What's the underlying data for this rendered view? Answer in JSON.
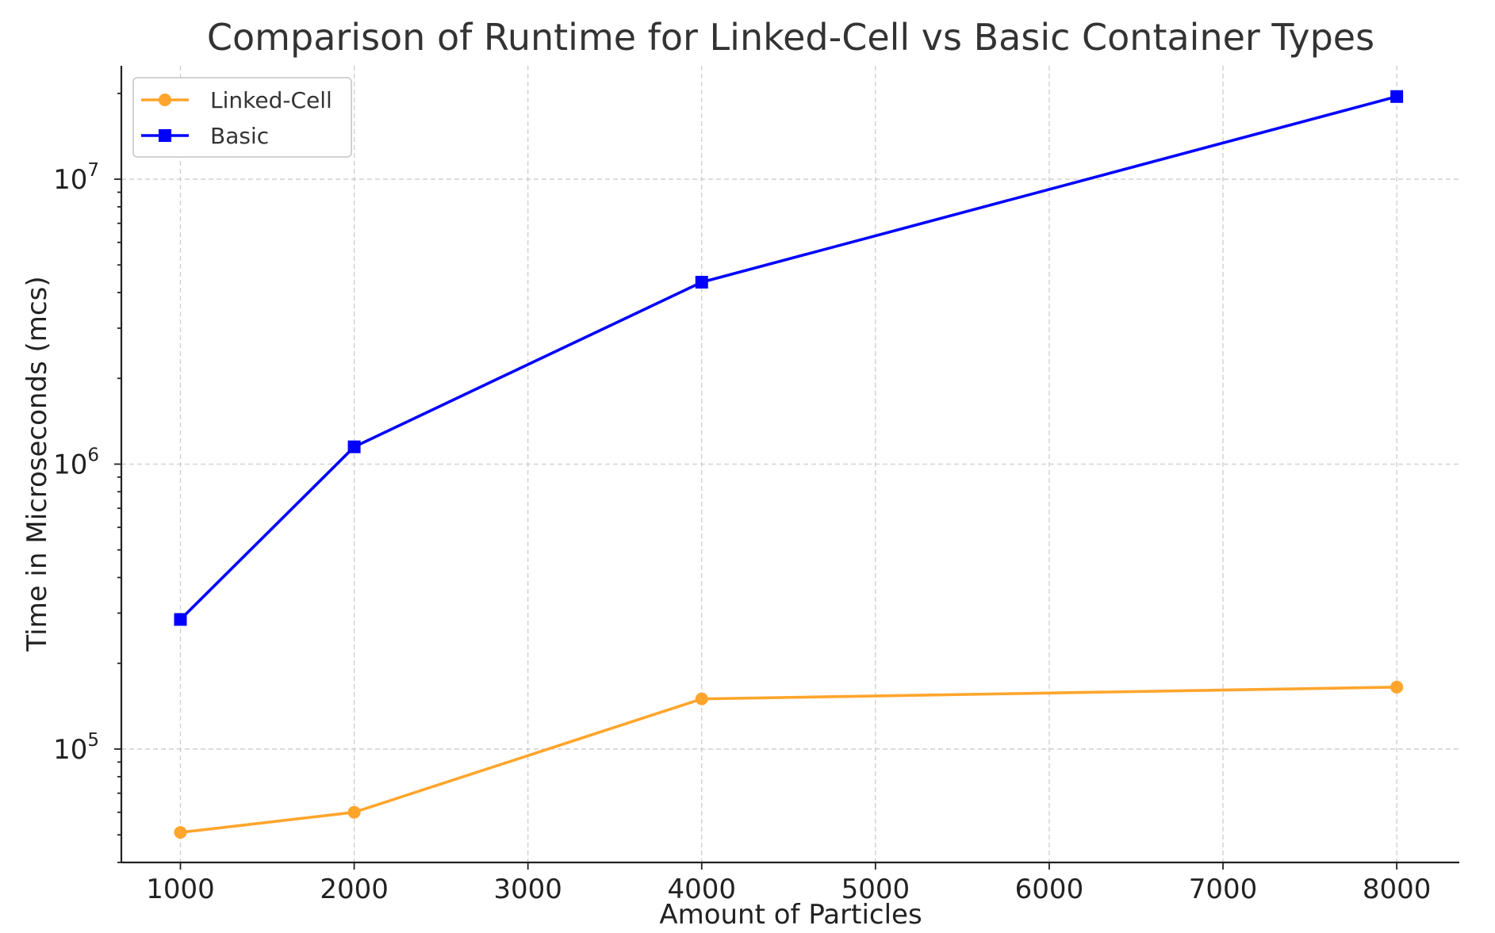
{
  "chart_data": {
    "type": "line",
    "title": "Comparison of Runtime for Linked-Cell vs Basic Container Types",
    "xlabel": "Amount of Particles",
    "ylabel": "Time in Microseconds (mcs)",
    "x": [
      1000,
      2000,
      4000,
      8000
    ],
    "xlim": [
      660,
      8360
    ],
    "ylim": [
      40000,
      25000000
    ],
    "yscale": "log",
    "xticks": [
      1000,
      2000,
      3000,
      4000,
      5000,
      6000,
      7000,
      8000
    ],
    "yticks": [
      {
        "value": 100000,
        "base": "10",
        "exp": "5"
      },
      {
        "value": 1000000,
        "base": "10",
        "exp": "6"
      },
      {
        "value": 10000000,
        "base": "10",
        "exp": "7"
      }
    ],
    "grid": true,
    "legend_position": "top-left",
    "series": [
      {
        "name": "Linked-Cell",
        "values": [
          51000,
          60000,
          150000,
          165000
        ],
        "color": "#ffa52c",
        "marker": "circle"
      },
      {
        "name": "Basic",
        "values": [
          285000,
          1150000,
          4350000,
          19500000
        ],
        "color": "#0000ff",
        "marker": "square"
      }
    ]
  }
}
